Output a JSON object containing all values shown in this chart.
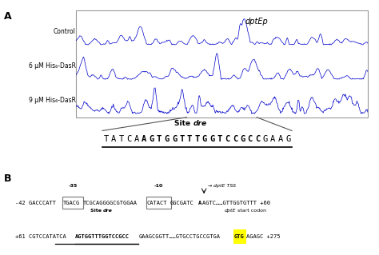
{
  "panel_A_label": "A",
  "panel_B_label": "B",
  "dptEp_label": "dptEp",
  "control_label": "Control",
  "6uM_label": "6 μM His₆-DasR",
  "9uM_label": "9 μM His₆-DasR",
  "site_dre_label_bold": "Site ",
  "site_dre_label_italic": "dre",
  "site_dre_seq_prefix": "TATCA",
  "site_dre_seq_bold": "AGTGGTTTGGTCCGCC",
  "site_dre_seq_suffix": "GAAG",
  "line_B1_neg35": "-35",
  "line_B1_neg10": "-10",
  "line_B1_tss_arrow": "→",
  "line_B1_tss_text": "dptE TSS",
  "line_B1_seg1": "-42 GACCCATT",
  "line_B1_box1": "TGACG",
  "line_B1_seg2": "TCGCAGGGGCGTGGAA",
  "line_B1_box2": "CATACT",
  "line_B1_seg3": "GGCGATC",
  "line_B1_bold_A": "A",
  "line_B1_seg4": "AGTC……GTTGGTGTTT +60",
  "line_B2_seg1": "+61 CGTCCATATCA",
  "line_B2_bold_ul": "AGTGGTTTGGTCCGCC",
  "line_B2_seg2": "GAAGCGGTT……GTGCCTGCCGTGA",
  "line_B2_highlight": "GTG",
  "line_B2_seg3": "AGAGC +275",
  "line_B2_site_dre_bold": "Site ",
  "line_B2_site_dre_italic": "dre",
  "line_B2_start_codon_italic": "dptE",
  "line_B2_start_codon_text": " start codon",
  "trace_color": "#0000cc",
  "box_color": "#777777",
  "highlight_yellow": "#ffff00",
  "figure_bg": "#ffffff",
  "con_line_color": "#555555"
}
